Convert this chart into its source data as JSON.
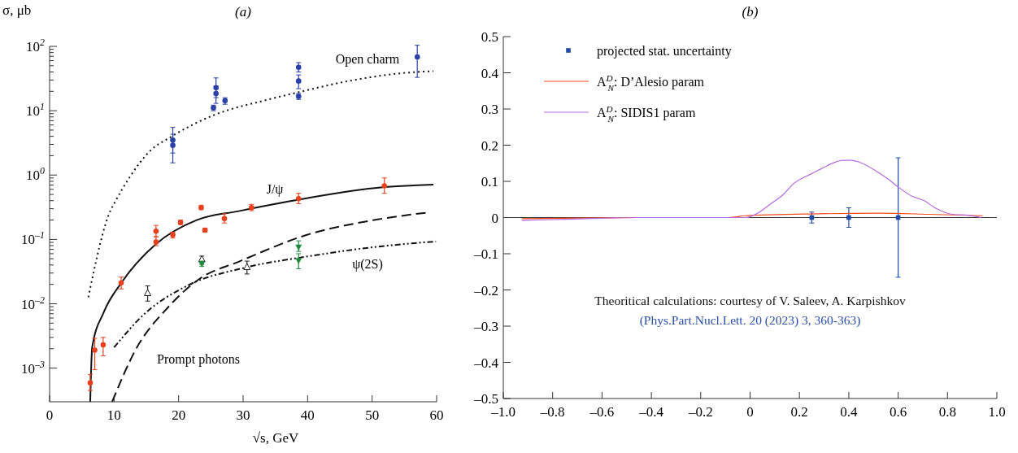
{
  "chart_data": [
    {
      "type": "scatter",
      "title": "(a)",
      "xlabel": "√s, GeV",
      "ylabel": "σ, μb",
      "log": "y",
      "xlim": [
        0,
        60
      ],
      "xticks": [
        0,
        10,
        20,
        30,
        40,
        50,
        60
      ],
      "ylim": [
        0.0003,
        100
      ],
      "yticks": [
        {
          "value": 0.001,
          "label": "10$^{–3}$"
        },
        {
          "value": 0.002,
          "label": null
        },
        {
          "value": 0.003,
          "label": null
        },
        {
          "value": 0.004,
          "label": null
        },
        {
          "value": 0.005,
          "label": null
        },
        {
          "value": 0.006,
          "label": null
        },
        {
          "value": 0.007,
          "label": null
        },
        {
          "value": 0.008,
          "label": null
        },
        {
          "value": 0.009,
          "label": null
        },
        {
          "value": 0.01,
          "label": "10$^{–2}$"
        },
        {
          "value": 0.02,
          "label": null
        },
        {
          "value": 0.03,
          "label": null
        },
        {
          "value": 0.04,
          "label": null
        },
        {
          "value": 0.05,
          "label": null
        },
        {
          "value": 0.06,
          "label": null
        },
        {
          "value": 0.07,
          "label": null
        },
        {
          "value": 0.08,
          "label": null
        },
        {
          "value": 0.09,
          "label": null
        },
        {
          "value": 0.1,
          "label": "10$^{–1}$"
        },
        {
          "value": 0.2,
          "label": null
        },
        {
          "value": 0.3,
          "label": null
        },
        {
          "value": 0.4,
          "label": null
        },
        {
          "value": 0.5,
          "label": null
        },
        {
          "value": 0.6,
          "label": null
        },
        {
          "value": 0.7,
          "label": null
        },
        {
          "value": 0.8,
          "label": null
        },
        {
          "value": 0.9,
          "label": null
        },
        {
          "value": 1,
          "label": "10$^{0}$"
        },
        {
          "value": 2,
          "label": null
        },
        {
          "value": 3,
          "label": null
        },
        {
          "value": 4,
          "label": null
        },
        {
          "value": 5,
          "label": null
        },
        {
          "value": 6,
          "label": null
        },
        {
          "value": 7,
          "label": null
        },
        {
          "value": 8,
          "label": null
        },
        {
          "value": 9,
          "label": null
        },
        {
          "value": 10,
          "label": "10$^{1}$"
        },
        {
          "value": 20,
          "label": null
        },
        {
          "value": 30,
          "label": null
        },
        {
          "value": 40,
          "label": null
        },
        {
          "value": 50,
          "label": null
        },
        {
          "value": 60,
          "label": null
        },
        {
          "value": 70,
          "label": null
        },
        {
          "value": 80,
          "label": null
        },
        {
          "value": 90,
          "label": null
        },
        {
          "value": 100,
          "label": "10$^{2}$"
        }
      ],
      "annotations": [
        "Open charm",
        "J/ψ",
        "ψ(2S)",
        "Prompt photons"
      ],
      "series": [
        {
          "type": "line",
          "line_style": "dotted",
          "color": "#111111",
          "x": [
            6.0,
            9.5,
            10.0,
            12.5,
            15.4,
            19.1,
            25.4,
            33.4,
            38.6,
            46.1,
            54.5,
            59.5
          ],
          "values": [
            0.0126,
            0.29,
            0.36,
            0.955,
            2.28,
            4.08,
            8.5,
            14.5,
            19.4,
            28.6,
            38.2,
            41.3
          ]
        },
        {
          "type": "line",
          "line_style": "solid",
          "color": "#111111",
          "x": [
            6.3,
            6.6,
            8.4,
            11.1,
            16.5,
            22.8,
            29.3,
            37.7,
            51.9,
            59.5
          ],
          "values": [
            0.0003,
            0.0021,
            0.0074,
            0.021,
            0.085,
            0.2,
            0.275,
            0.4,
            0.65,
            0.71
          ]
        },
        {
          "type": "line",
          "line_style": "dashed",
          "color": "#111111",
          "x": [
            9.7,
            13.3,
            18.4,
            23.4,
            29.3,
            39.8,
            50.3,
            58.4
          ],
          "values": [
            0.0003,
            0.0019,
            0.0089,
            0.025,
            0.045,
            0.117,
            0.2,
            0.26
          ]
        },
        {
          "type": "line",
          "line_style": "dashdot",
          "color": "#111111",
          "x": [
            10.0,
            14.6,
            21.5,
            30.6,
            39.8,
            50.3,
            59.9
          ],
          "values": [
            0.0021,
            0.0068,
            0.0194,
            0.037,
            0.054,
            0.076,
            0.093
          ]
        },
        {
          "marker": "circle",
          "color": "#2b3fa8",
          "x": [
            19.1,
            19.1,
            25.4,
            25.8,
            25.8,
            27.2,
            38.6,
            38.6,
            38.6,
            57.0
          ],
          "values": [
            3.5,
            2.9,
            11.1,
            22.8,
            18.5,
            14.3,
            47.3,
            28.9,
            16.7,
            68.4
          ],
          "errors": [
            [
              2.2,
              5.5
            ],
            [
              1.55,
              4.3
            ],
            [
              10.0,
              12.2
            ],
            [
              16,
              32.3
            ],
            [
              13,
              24
            ],
            [
              12.6,
              15.9
            ],
            [
              40,
              55.9
            ],
            [
              22,
              36
            ],
            [
              15.0,
              18.5
            ],
            [
              33,
              104
            ]
          ]
        },
        {
          "marker": "circle",
          "color": "#e8401c",
          "x": [
            6.3,
            7.0,
            8.3,
            11.1,
            16.5,
            16.5,
            19.1,
            20.3,
            23.5,
            24.1,
            27.1,
            31.3,
            38.6,
            51.9
          ],
          "values": [
            0.00059,
            0.0019,
            0.0023,
            0.0211,
            0.091,
            0.134,
            0.118,
            0.183,
            0.312,
            0.139,
            0.211,
            0.312,
            0.43,
            0.68
          ],
          "errors": [
            [
              0.00045,
              0.0008
            ],
            [
              0.00095,
              0.0029
            ],
            [
              0.00155,
              0.003
            ],
            [
              0.017,
              0.026
            ],
            [
              0.08,
              0.11
            ],
            [
              0.11,
              0.165
            ],
            [
              0.105,
              0.13
            ],
            [
              0.17,
              0.2
            ],
            [
              0.29,
              0.34
            ],
            [
              0.13,
              0.15
            ],
            [
              0.18,
              0.25
            ],
            [
              0.28,
              0.35
            ],
            [
              0.36,
              0.52
            ],
            [
              0.52,
              0.9
            ]
          ]
        },
        {
          "marker": "triangle",
          "color": "#222222",
          "x": [
            15.2,
            23.6,
            30.6
          ],
          "values": [
            0.0146,
            0.049,
            0.037
          ],
          "errors": [
            [
              0.011,
              0.019
            ],
            [
              0.041,
              0.055
            ],
            [
              0.029,
              0.046
            ]
          ]
        },
        {
          "marker": "triangle-down",
          "color": "#1f8a3c",
          "x": [
            23.6,
            38.6,
            38.6
          ],
          "values": [
            0.042,
            0.076,
            0.047
          ],
          "errors": [
            [
              0.038,
              0.046
            ],
            [
              0.065,
              0.095
            ],
            [
              0.035,
              0.06
            ]
          ]
        }
      ]
    },
    {
      "type": "line",
      "title": "(b)",
      "legend": "top left",
      "xlim": [
        -1,
        1
      ],
      "ylim": [
        -0.5,
        0.5
      ],
      "xticks": [
        {
          "value": -1,
          "label": "–1.0"
        },
        {
          "value": -0.8,
          "label": "–0.8"
        },
        {
          "value": -0.6,
          "label": "–0.6"
        },
        {
          "value": -0.4,
          "label": "–0.4"
        },
        {
          "value": -0.2,
          "label": "–0.2"
        },
        0,
        0.2,
        0.4,
        0.6,
        0.8,
        {
          "value": 1,
          "label": "1.0"
        }
      ],
      "yticks": [
        {
          "value": -0.5,
          "label": "–0.5"
        },
        {
          "value": -0.4,
          "label": "–0.4"
        },
        {
          "value": -0.3,
          "label": "–0.3"
        },
        {
          "value": -0.2,
          "label": "–0.2"
        },
        {
          "value": -0.1,
          "label": "–0.1"
        },
        0,
        0.1,
        0.2,
        0.3,
        0.4,
        0.5
      ],
      "ref_lines": [
        {
          "axis": "y",
          "value": 0,
          "color": "#333333"
        }
      ],
      "annotations": [
        "Theoritical calculations: courtesy of V. Saleev, A. Karpishkov",
        "(Phys.Part.Nucl.Lett. 20 (2023) 3, 360-363)"
      ],
      "series": [
        {
          "type": "scatter",
          "marker": "square",
          "name": "projected stat. uncertainty",
          "color": "#1f4aa8",
          "x": [
            0.25,
            0.4,
            0.6
          ],
          "values": [
            0,
            0,
            0
          ],
          "errors": [
            0.015,
            0.027,
            0.165
          ]
        },
        {
          "name": "A$^{D}$$_{N}$: D’Alesio param",
          "color": "#f04a1a",
          "x": [
            -0.925,
            -0.456,
            -0.088,
            -0.02,
            0.11,
            0.245,
            0.52,
            0.725,
            0.943
          ],
          "values": [
            -0.003,
            0,
            0,
            0.005,
            0.008,
            0.01,
            0.012,
            0.009,
            0.005
          ]
        },
        {
          "name": "A$^{D}$$_{N}$: SIDIS1 param",
          "color": "#b56be0",
          "x": [
            -0.925,
            -0.716,
            -0.456,
            -0.017,
            0.025,
            0.08,
            0.135,
            0.177,
            0.245,
            0.286,
            0.327,
            0.375,
            0.41,
            0.45,
            0.505,
            0.56,
            0.601,
            0.656,
            0.704,
            0.752,
            0.82,
            0.889,
            0.937
          ],
          "values": [
            -0.008,
            -0.004,
            0,
            0,
            0.01,
            0.036,
            0.064,
            0.094,
            0.12,
            0.134,
            0.148,
            0.158,
            0.158,
            0.151,
            0.131,
            0.106,
            0.084,
            0.059,
            0.047,
            0.026,
            0.009,
            0.006,
            0
          ]
        }
      ]
    }
  ]
}
